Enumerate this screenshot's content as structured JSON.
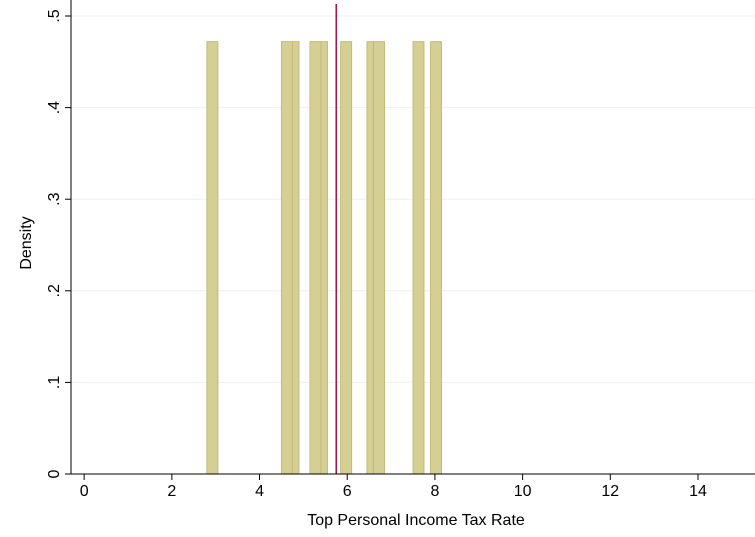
{
  "chart_data": {
    "type": "bar",
    "title": "",
    "xlabel": "Top Personal Income Tax Rate",
    "ylabel": "Density",
    "xlim": [
      -0.3,
      15.3
    ],
    "ylim": [
      0,
      0.5
    ],
    "x_ticks": [
      0,
      2,
      4,
      6,
      8,
      10,
      12,
      14
    ],
    "x_tick_labels": [
      "0",
      "2",
      "4",
      "6",
      "8",
      "10",
      "12",
      "14"
    ],
    "y_ticks": [
      0,
      0.1,
      0.2,
      0.3,
      0.4,
      0.5
    ],
    "y_tick_labels": [
      "0",
      ".1",
      ".2",
      ".3",
      ".4",
      ".5"
    ],
    "grid": true,
    "bars": [
      {
        "x_start": 2.8,
        "x_end": 3.05,
        "density": 0.472
      },
      {
        "x_start": 4.5,
        "x_end": 4.75,
        "density": 0.472
      },
      {
        "x_start": 4.75,
        "x_end": 4.9,
        "density": 0.472
      },
      {
        "x_start": 5.15,
        "x_end": 5.4,
        "density": 0.472
      },
      {
        "x_start": 5.4,
        "x_end": 5.55,
        "density": 0.472
      },
      {
        "x_start": 5.85,
        "x_end": 6.1,
        "density": 0.472
      },
      {
        "x_start": 6.45,
        "x_end": 6.6,
        "density": 0.472
      },
      {
        "x_start": 6.6,
        "x_end": 6.85,
        "density": 0.472
      },
      {
        "x_start": 7.5,
        "x_end": 7.75,
        "density": 0.472
      },
      {
        "x_start": 7.9,
        "x_end": 8.15,
        "density": 0.472
      }
    ],
    "reference_line": {
      "x": 5.75
    },
    "colors": {
      "bar_fill": "#d6cf94",
      "bar_edge": "#c4bb78",
      "reference_line": "#9b1c4e",
      "grid": "#eaf0f4",
      "axis": "#000000"
    }
  }
}
